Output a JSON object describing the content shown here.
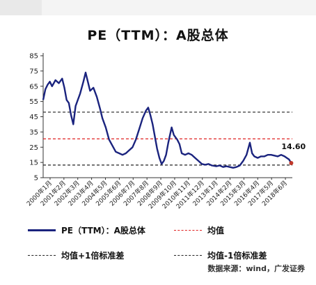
{
  "chart_data": {
    "type": "line",
    "title": "PE（TTM）：A股总体",
    "ylim": [
      5,
      85
    ],
    "yticks": [
      5,
      15,
      25,
      35,
      45,
      55,
      65,
      75,
      85
    ],
    "xlim": [
      "2000-01",
      "2018-08"
    ],
    "grid": false,
    "legend_position": "bottom",
    "x_tick_labels": [
      "2000年1月",
      "2001年2月",
      "2002年3月",
      "2003年4月",
      "2004年5月",
      "2005年6月",
      "2006年7月",
      "2007年8月",
      "2008年9月",
      "2009年10月",
      "2010年11月",
      "2011年12月",
      "2013年1月",
      "2014年2月",
      "2015年3月",
      "2016年4月",
      "2017年5月",
      "2018年6月"
    ],
    "series": [
      {
        "name": "PE（TTM）：A股总体",
        "color": "#1a237e",
        "points": [
          [
            "2000-01",
            56
          ],
          [
            "2000-03",
            63
          ],
          [
            "2000-05",
            66
          ],
          [
            "2000-07",
            68
          ],
          [
            "2000-09",
            65
          ],
          [
            "2000-12",
            69
          ],
          [
            "2001-03",
            67
          ],
          [
            "2001-06",
            70
          ],
          [
            "2001-08",
            64
          ],
          [
            "2001-10",
            56
          ],
          [
            "2001-12",
            54
          ],
          [
            "2002-02",
            46
          ],
          [
            "2002-04",
            40
          ],
          [
            "2002-06",
            52
          ],
          [
            "2002-08",
            56
          ],
          [
            "2002-10",
            60
          ],
          [
            "2003-01",
            68
          ],
          [
            "2003-03",
            74
          ],
          [
            "2003-05",
            68
          ],
          [
            "2003-07",
            62
          ],
          [
            "2003-10",
            64
          ],
          [
            "2004-01",
            58
          ],
          [
            "2004-04",
            50
          ],
          [
            "2004-06",
            44
          ],
          [
            "2004-09",
            38
          ],
          [
            "2004-12",
            30
          ],
          [
            "2005-03",
            26
          ],
          [
            "2005-06",
            22
          ],
          [
            "2005-09",
            21
          ],
          [
            "2005-12",
            20
          ],
          [
            "2006-03",
            21
          ],
          [
            "2006-06",
            23
          ],
          [
            "2006-09",
            25
          ],
          [
            "2006-12",
            30
          ],
          [
            "2007-03",
            37
          ],
          [
            "2007-06",
            44
          ],
          [
            "2007-09",
            49
          ],
          [
            "2007-11",
            51
          ],
          [
            "2008-01",
            46
          ],
          [
            "2008-03",
            40
          ],
          [
            "2008-05",
            32
          ],
          [
            "2008-07",
            24
          ],
          [
            "2008-09",
            18
          ],
          [
            "2008-11",
            14
          ],
          [
            "2009-01",
            16
          ],
          [
            "2009-03",
            20
          ],
          [
            "2009-05",
            28
          ],
          [
            "2009-08",
            38
          ],
          [
            "2009-10",
            33
          ],
          [
            "2010-01",
            30
          ],
          [
            "2010-03",
            27
          ],
          [
            "2010-05",
            21
          ],
          [
            "2010-08",
            20
          ],
          [
            "2010-11",
            21
          ],
          [
            "2011-02",
            20
          ],
          [
            "2011-05",
            18
          ],
          [
            "2011-08",
            16
          ],
          [
            "2011-11",
            14
          ],
          [
            "2012-02",
            13.5
          ],
          [
            "2012-05",
            14
          ],
          [
            "2012-08",
            13
          ],
          [
            "2012-12",
            12.5
          ],
          [
            "2013-03",
            13
          ],
          [
            "2013-06",
            12
          ],
          [
            "2013-09",
            12.5
          ],
          [
            "2013-12",
            12
          ],
          [
            "2014-03",
            11.5
          ],
          [
            "2014-06",
            12
          ],
          [
            "2014-09",
            13
          ],
          [
            "2014-12",
            16
          ],
          [
            "2015-03",
            20
          ],
          [
            "2015-06",
            28
          ],
          [
            "2015-08",
            21
          ],
          [
            "2015-10",
            19
          ],
          [
            "2016-01",
            18
          ],
          [
            "2016-04",
            19
          ],
          [
            "2016-07",
            19
          ],
          [
            "2016-10",
            20
          ],
          [
            "2017-01",
            20
          ],
          [
            "2017-04",
            19.5
          ],
          [
            "2017-07",
            19
          ],
          [
            "2017-10",
            20
          ],
          [
            "2018-01",
            19
          ],
          [
            "2018-03",
            18
          ],
          [
            "2018-05",
            17
          ],
          [
            "2018-07",
            14.6
          ]
        ],
        "last_value_label": "14.60"
      },
      {
        "name": "均值",
        "style": "dashed",
        "color": "#e02020",
        "value": 30.5
      },
      {
        "name": "均值+1倍标准差",
        "style": "dashed",
        "color": "#222222",
        "value": 48
      },
      {
        "name": "均值-1倍标准差",
        "style": "dashed",
        "color": "#222222",
        "value": 13.3
      }
    ]
  },
  "source_text": "数据来源：wind，广发证券"
}
